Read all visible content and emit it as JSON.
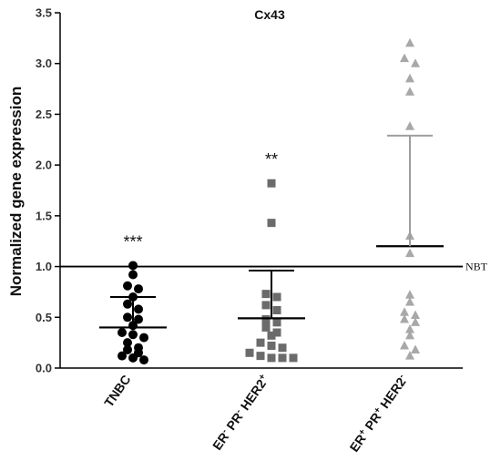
{
  "chart_data": {
    "type": "scatter",
    "title": "Cx43",
    "ylabel": "Normalized gene expression",
    "xlabel": "",
    "ylim": [
      0,
      3.5
    ],
    "yticks": [
      "0.0",
      "0.5",
      "1.0",
      "1.5",
      "2.0",
      "2.5",
      "3.0",
      "3.5"
    ],
    "grid": false,
    "reference_line": {
      "label": "NBT",
      "value": 1.0
    },
    "groups": [
      {
        "label": "TNBC",
        "label_parts": [
          {
            "text": "TNBC"
          }
        ],
        "marker": "circle",
        "color": "#000000",
        "significance": "***",
        "mean": 0.4,
        "upper": 0.7,
        "points": [
          1.01,
          0.92,
          0.81,
          0.78,
          0.7,
          0.63,
          0.58,
          0.5,
          0.48,
          0.42,
          0.35,
          0.33,
          0.3,
          0.25,
          0.2,
          0.18,
          0.15,
          0.12,
          0.1,
          0.08
        ]
      },
      {
        "label": "ER- PR- HER2+",
        "label_parts": [
          {
            "text": "ER"
          },
          {
            "sup": "-"
          },
          {
            "text": " PR"
          },
          {
            "sup": "-"
          },
          {
            "text": " HER2"
          },
          {
            "sup": "+"
          }
        ],
        "marker": "square",
        "color": "#6b6b6b",
        "significance": "**",
        "mean": 0.49,
        "upper": 0.96,
        "points": [
          1.82,
          1.43,
          0.73,
          0.7,
          0.62,
          0.57,
          0.48,
          0.45,
          0.4,
          0.35,
          0.32,
          0.25,
          0.22,
          0.2,
          0.15,
          0.12,
          0.1,
          0.1,
          0.1
        ]
      },
      {
        "label": "ER+ PR+ HER2-",
        "label_parts": [
          {
            "text": "ER"
          },
          {
            "sup": "+"
          },
          {
            "text": " PR"
          },
          {
            "sup": "+"
          },
          {
            "text": " HER2"
          },
          {
            "sup": "-"
          }
        ],
        "marker": "triangle",
        "color": "#a8a8a8",
        "significance": "",
        "mean": 1.2,
        "upper": 2.29,
        "points": [
          3.2,
          3.05,
          3.0,
          2.85,
          2.72,
          2.38,
          1.3,
          1.13,
          0.72,
          0.65,
          0.55,
          0.52,
          0.48,
          0.45,
          0.38,
          0.32,
          0.22,
          0.18,
          0.12
        ]
      }
    ]
  }
}
